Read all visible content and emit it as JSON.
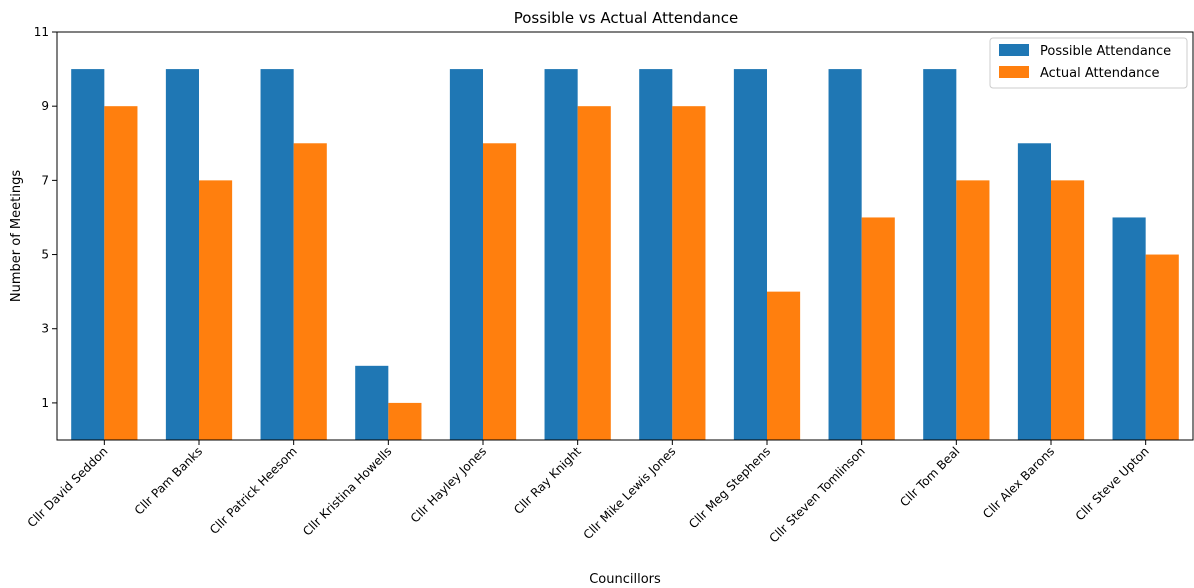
{
  "chart_data": {
    "type": "bar",
    "title": "Possible vs Actual Attendance",
    "xlabel": "Councillors",
    "ylabel": "Number of Meetings",
    "categories": [
      "Cllr David Seddon",
      "Cllr Pam Banks",
      "Cllr Patrick Heesom",
      "Cllr Kristina Howells",
      "Cllr Hayley Jones",
      "Cllr Ray Knight",
      "Cllr Mike Lewis Jones",
      "Cllr Meg Stephens",
      "Cllr Steven Tomlinson",
      "Cllr Tom Beal",
      "Cllr Alex Barons",
      "Cllr Steve Upton"
    ],
    "series": [
      {
        "name": "Possible Attendance",
        "color": "#1f77b4",
        "values": [
          10,
          10,
          10,
          2,
          10,
          10,
          10,
          10,
          10,
          10,
          8,
          6
        ]
      },
      {
        "name": "Actual Attendance",
        "color": "#ff7f0e",
        "values": [
          9,
          7,
          8,
          1,
          8,
          9,
          9,
          4,
          6,
          7,
          7,
          5
        ]
      }
    ],
    "ylim": [
      0,
      11
    ],
    "yticks": [
      "1",
      "3",
      "5",
      "7",
      "9",
      "11"
    ],
    "grid": false,
    "legend_position": "top-right"
  }
}
